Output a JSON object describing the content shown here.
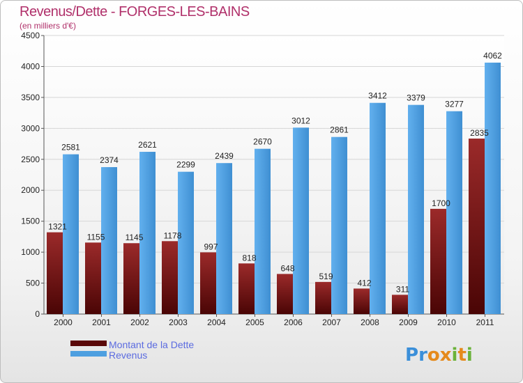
{
  "title": "Revenus/Dette - FORGES-LES-BAINS",
  "subtitle": "(en milliers d'€)",
  "logo_text": "Proxiti",
  "colors": {
    "dette": "#8b1a1a",
    "revenus": "#4d9fe0",
    "title": "#b0306a",
    "legend_text": "#5b6be0"
  },
  "chart_data": {
    "type": "bar",
    "categories": [
      "2000",
      "2001",
      "2002",
      "2003",
      "2004",
      "2005",
      "2006",
      "2007",
      "2008",
      "2009",
      "2010",
      "2011"
    ],
    "series": [
      {
        "name": "Montant de la Dette",
        "values": [
          1321,
          1155,
          1145,
          1178,
          997,
          818,
          648,
          519,
          412,
          311,
          1700,
          2835
        ]
      },
      {
        "name": "Revenus",
        "values": [
          2581,
          2374,
          2621,
          2299,
          2439,
          2670,
          3012,
          2861,
          3412,
          3379,
          3277,
          4062
        ]
      }
    ],
    "ylim": [
      0,
      4500
    ],
    "yticks": [
      0,
      500,
      1000,
      1500,
      2000,
      2500,
      3000,
      3500,
      4000,
      4500
    ],
    "grid": true,
    "legend": "bottom-left"
  }
}
